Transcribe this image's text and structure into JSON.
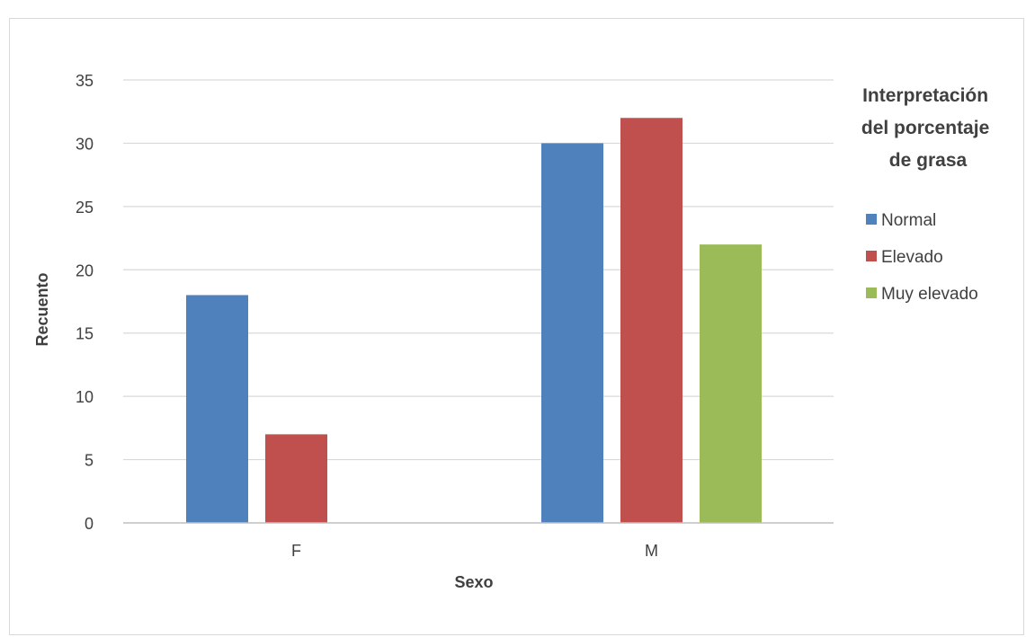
{
  "chart_data": {
    "type": "bar",
    "categories": [
      "F",
      "M"
    ],
    "series": [
      {
        "name": "Normal",
        "values": [
          18,
          30
        ],
        "color": "#4F81BD"
      },
      {
        "name": "Elevado",
        "values": [
          7,
          32
        ],
        "color": "#C0504D"
      },
      {
        "name": "Muy elevado",
        "values": [
          0,
          22
        ],
        "color": "#9BBB59"
      }
    ],
    "xlabel": "Sexo",
    "ylabel": "Recuento",
    "ylim": [
      0,
      35
    ],
    "yticks": [
      "0",
      "5",
      "10",
      "15",
      "20",
      "25",
      "30",
      "35"
    ],
    "grid": true,
    "legend": {
      "title_lines": [
        "Interpretación",
        "del porcentaje",
        "de grasa"
      ],
      "placement": "right"
    }
  }
}
